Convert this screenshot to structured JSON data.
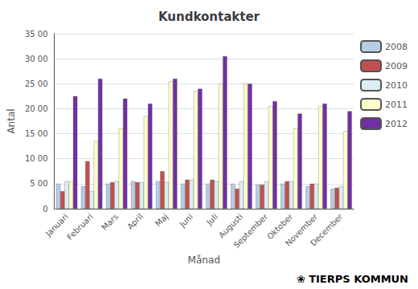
{
  "chart_data": {
    "type": "bar",
    "title": "Kundkontakter",
    "xlabel": "Månad",
    "ylabel": "Antal",
    "categories": [
      "Januari",
      "Februari",
      "Mars",
      "April",
      "Maj",
      "Juni",
      "Juli",
      "Augusti",
      "September",
      "Oktober",
      "November",
      "December"
    ],
    "series": [
      {
        "name": "2008",
        "color": "#b8cce4",
        "values": [
          500,
          450,
          500,
          550,
          550,
          500,
          500,
          500,
          480,
          500,
          450,
          400
        ]
      },
      {
        "name": "2009",
        "color": "#c0504d",
        "values": [
          350,
          950,
          530,
          530,
          750,
          580,
          580,
          400,
          480,
          550,
          500,
          420
        ]
      },
      {
        "name": "2010",
        "color": "#daeef3",
        "values": [
          550,
          350,
          550,
          530,
          530,
          580,
          550,
          550,
          550,
          550,
          500,
          450
        ]
      },
      {
        "name": "2011",
        "color": "#ffffcc",
        "values": [
          550,
          1350,
          1600,
          1850,
          2550,
          2350,
          2500,
          2500,
          2050,
          1600,
          2050,
          1550
        ]
      },
      {
        "name": "2012",
        "color": "#7030a0",
        "values": [
          2250,
          2600,
          2200,
          2100,
          2600,
          2400,
          3050,
          2500,
          2150,
          1900,
          2100,
          1950
        ]
      }
    ],
    "ylim": [
      0,
      3500
    ],
    "yticks": [
      0,
      {
        "value": 500,
        "label": "5 00"
      },
      {
        "value": 1000,
        "label": "10 00"
      },
      {
        "value": 1500,
        "label": "15 00"
      },
      {
        "value": 2000,
        "label": "20 00"
      },
      {
        "value": 2500,
        "label": "25 00"
      },
      {
        "value": 3000,
        "label": "30 00"
      },
      {
        "value": 3500,
        "label": "35 00"
      }
    ],
    "grid": true,
    "legend": "right",
    "annotations": [
      "❀",
      "TIERPS KOMMUN"
    ]
  }
}
